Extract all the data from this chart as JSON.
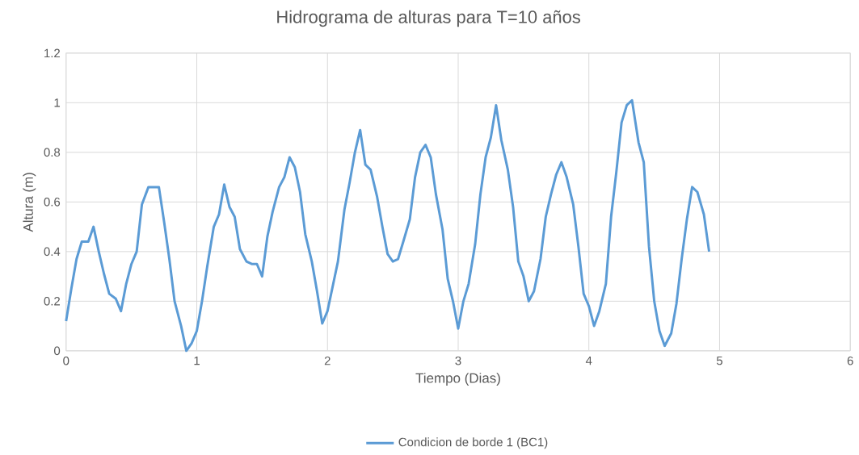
{
  "chart_data": {
    "type": "line",
    "title": "Hidrograma de alturas para T=10 años",
    "xlabel": "Tiempo (Dias)",
    "ylabel": "Altura (m)",
    "xlim": [
      0,
      6
    ],
    "ylim": [
      0,
      1.2
    ],
    "xticks": [
      0,
      1,
      2,
      3,
      4,
      5,
      6
    ],
    "yticks": [
      0,
      0.2,
      0.4,
      0.6,
      0.8,
      1,
      1.2
    ],
    "grid": true,
    "legend": "bottom",
    "marker": "none",
    "line_style": "solid",
    "x": [
      0,
      0.04,
      0.08,
      0.12,
      0.17,
      0.21,
      0.25,
      0.29,
      0.33,
      0.38,
      0.42,
      0.46,
      0.5,
      0.54,
      0.58,
      0.63,
      0.67,
      0.71,
      0.75,
      0.79,
      0.83,
      0.88,
      0.92,
      0.96,
      1.0,
      1.04,
      1.08,
      1.13,
      1.17,
      1.21,
      1.25,
      1.29,
      1.33,
      1.38,
      1.42,
      1.46,
      1.5,
      1.54,
      1.58,
      1.63,
      1.67,
      1.71,
      1.75,
      1.79,
      1.83,
      1.88,
      1.92,
      1.96,
      2.0,
      2.04,
      2.08,
      2.13,
      2.17,
      2.21,
      2.25,
      2.29,
      2.33,
      2.38,
      2.42,
      2.46,
      2.5,
      2.54,
      2.58,
      2.63,
      2.67,
      2.71,
      2.75,
      2.79,
      2.83,
      2.88,
      2.92,
      2.96,
      3.0,
      3.04,
      3.08,
      3.13,
      3.17,
      3.21,
      3.25,
      3.29,
      3.33,
      3.38,
      3.42,
      3.46,
      3.5,
      3.54,
      3.58,
      3.63,
      3.67,
      3.71,
      3.75,
      3.79,
      3.83,
      3.88,
      3.92,
      3.96,
      4.0,
      4.04,
      4.08,
      4.13,
      4.17,
      4.21,
      4.25,
      4.29,
      4.33,
      4.38,
      4.42,
      4.46,
      4.5,
      4.54,
      4.58,
      4.63,
      4.67,
      4.71,
      4.75,
      4.79,
      4.83,
      4.88,
      4.92
    ],
    "series": [
      {
        "name": "Condicion de borde 1 (BC1)",
        "color": "#5b9bd5",
        "values": [
          0.12,
          0.25,
          0.37,
          0.44,
          0.44,
          0.5,
          0.4,
          0.31,
          0.23,
          0.21,
          0.16,
          0.27,
          0.35,
          0.4,
          0.59,
          0.66,
          0.66,
          0.66,
          0.52,
          0.37,
          0.2,
          0.1,
          0.0,
          0.03,
          0.08,
          0.2,
          0.34,
          0.5,
          0.55,
          0.67,
          0.58,
          0.54,
          0.41,
          0.36,
          0.35,
          0.35,
          0.3,
          0.46,
          0.56,
          0.66,
          0.7,
          0.78,
          0.74,
          0.64,
          0.47,
          0.36,
          0.24,
          0.11,
          0.16,
          0.26,
          0.36,
          0.57,
          0.68,
          0.8,
          0.89,
          0.75,
          0.73,
          0.62,
          0.5,
          0.39,
          0.36,
          0.37,
          0.44,
          0.53,
          0.7,
          0.8,
          0.83,
          0.78,
          0.63,
          0.49,
          0.29,
          0.2,
          0.09,
          0.2,
          0.27,
          0.43,
          0.63,
          0.78,
          0.86,
          0.99,
          0.85,
          0.73,
          0.58,
          0.36,
          0.3,
          0.2,
          0.24,
          0.37,
          0.54,
          0.63,
          0.71,
          0.76,
          0.7,
          0.59,
          0.42,
          0.23,
          0.18,
          0.1,
          0.16,
          0.27,
          0.54,
          0.72,
          0.92,
          0.99,
          1.01,
          0.84,
          0.76,
          0.42,
          0.2,
          0.08,
          0.02,
          0.07,
          0.19,
          0.37,
          0.53,
          0.66,
          0.64,
          0.55,
          0.4
        ]
      }
    ]
  }
}
